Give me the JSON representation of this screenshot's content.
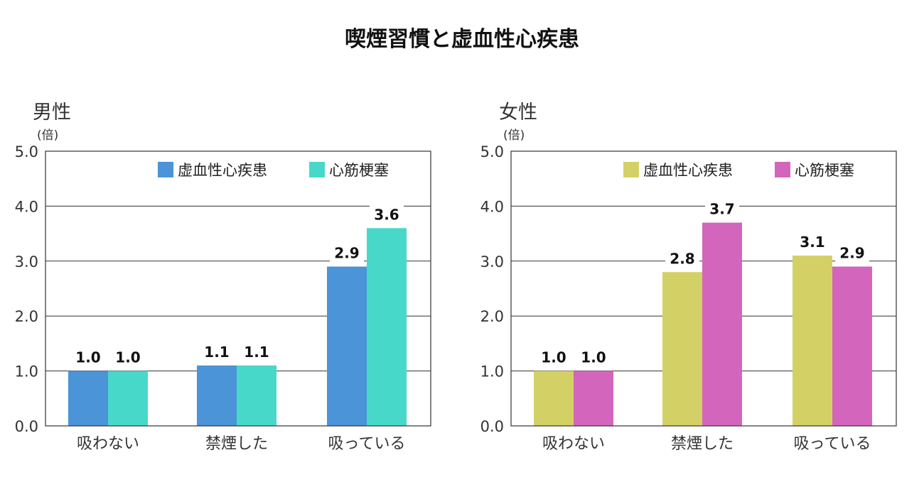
{
  "title": "喫煙習慣と虚血性心疾患",
  "chart_data": [
    {
      "type": "bar",
      "panel_title": "男性",
      "unit": "(倍)",
      "categories": [
        "吸わない",
        "禁煙した",
        "吸っている"
      ],
      "series": [
        {
          "name": "虚血性心疾患",
          "color": "#4a94d7",
          "values": [
            1.0,
            1.1,
            2.9
          ],
          "labels": [
            "1.0",
            "1.1",
            "2.9"
          ]
        },
        {
          "name": "心筋梗塞",
          "color": "#47d8c9",
          "values": [
            1.0,
            1.1,
            3.6
          ],
          "labels": [
            "1.0",
            "1.1",
            "3.6"
          ]
        }
      ],
      "ylim": [
        0,
        5
      ],
      "yticks": [
        "0.0",
        "1.0",
        "2.0",
        "3.0",
        "4.0",
        "5.0"
      ],
      "grid": true,
      "legend": "top-right"
    },
    {
      "type": "bar",
      "panel_title": "女性",
      "unit": "(倍)",
      "categories": [
        "吸わない",
        "禁煙した",
        "吸っている"
      ],
      "series": [
        {
          "name": "虚血性心疾患",
          "color": "#d3d165",
          "values": [
            1.0,
            2.8,
            3.1
          ],
          "labels": [
            "1.0",
            "2.8",
            "3.1"
          ]
        },
        {
          "name": "心筋梗塞",
          "color": "#d465bc",
          "values": [
            1.0,
            3.7,
            2.9
          ],
          "labels": [
            "1.0",
            "3.7",
            "2.9"
          ]
        }
      ],
      "ylim": [
        0,
        5
      ],
      "yticks": [
        "0.0",
        "1.0",
        "2.0",
        "3.0",
        "4.0",
        "5.0"
      ],
      "grid": true,
      "legend": "top-right"
    }
  ]
}
